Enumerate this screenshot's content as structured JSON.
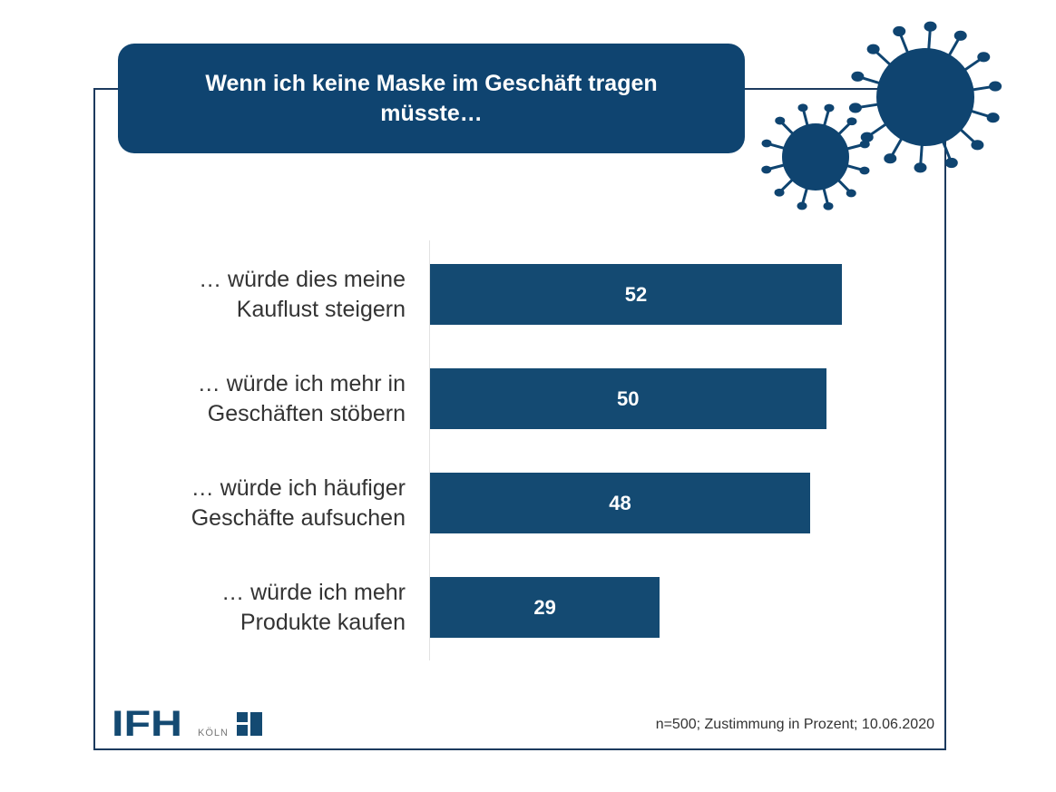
{
  "chart_data": {
    "type": "bar",
    "orientation": "horizontal",
    "title": "Wenn ich keine Maske im Geschäft tragen müsste…",
    "categories": [
      [
        "… würde dies meine",
        "Kauflust steigern"
      ],
      [
        "… würde ich mehr in",
        "Geschäften stöbern"
      ],
      [
        "… würde ich häufiger",
        "Geschäfte aufsuchen"
      ],
      [
        "… würde ich mehr",
        "Produkte kaufen"
      ]
    ],
    "values": [
      52,
      50,
      48,
      29
    ],
    "data_labels": [
      "52",
      "50",
      "48",
      "29"
    ],
    "xlim": [
      0,
      100
    ],
    "grid": false,
    "bar_color": "#144a72"
  },
  "footnote": "n=500; Zustimmung in Prozent; 10.06.2020",
  "logo": {
    "text": "IFH",
    "subtext": "KÖLN"
  },
  "colors": {
    "primary": "#0f4470",
    "frame": "#1c3a5e"
  }
}
